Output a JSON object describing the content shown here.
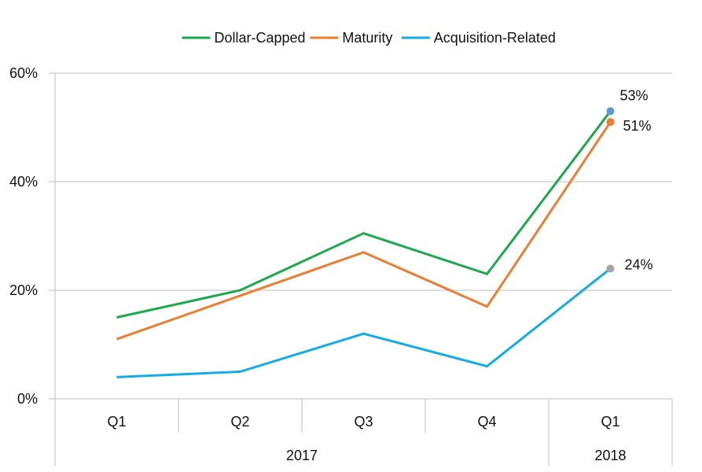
{
  "chart_data": {
    "type": "line",
    "title": "",
    "xlabel": "",
    "ylabel": "",
    "categories": [
      "Q1",
      "Q2",
      "Q3",
      "Q4",
      "Q1"
    ],
    "years": [
      {
        "label": "2017",
        "span": 4
      },
      {
        "label": "2018",
        "span": 1
      }
    ],
    "ylim": [
      0,
      60
    ],
    "yticks": [
      0,
      20,
      40,
      60
    ],
    "ytick_labels": [
      "0%",
      "20%",
      "40%",
      "60%"
    ],
    "grid": true,
    "legend_position": "top",
    "series": [
      {
        "name": "Dollar-Capped",
        "color": "#1aa94b",
        "values": [
          15,
          20,
          30.5,
          23,
          53
        ],
        "end_label": "53%",
        "end_marker_color": "#5b9bd5"
      },
      {
        "name": "Maturity",
        "color": "#ed7d31",
        "values": [
          11,
          19,
          27,
          17,
          51
        ],
        "end_label": "51%",
        "end_marker_color": "#ed7d31"
      },
      {
        "name": "Acquisition-Related",
        "color": "#12ade7",
        "values": [
          4,
          5,
          12,
          6,
          24
        ],
        "end_label": "24%",
        "end_marker_color": "#a5a5a5"
      }
    ]
  }
}
